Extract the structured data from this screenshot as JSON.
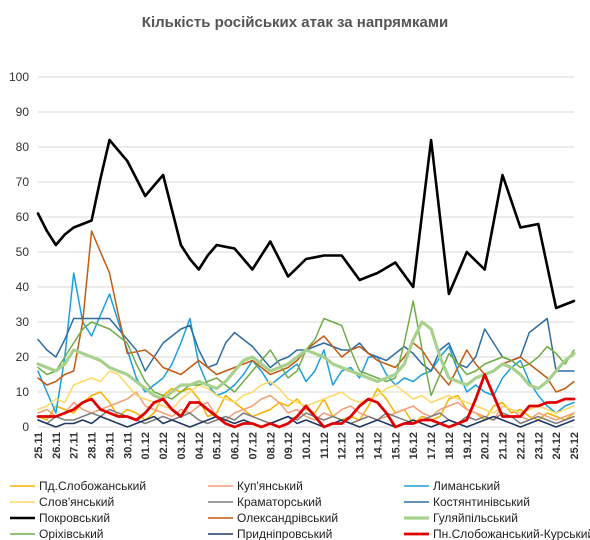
{
  "chart_data": {
    "type": "line",
    "title": "Кількість російських атак за напрямками",
    "xlabel": "",
    "ylabel": "",
    "ylim": [
      0,
      100
    ],
    "yticks": [
      0,
      10,
      20,
      30,
      40,
      50,
      60,
      70,
      80,
      90,
      100
    ],
    "grid": "horizontal",
    "legend_position": "bottom",
    "categories": [
      "25.11",
      "26.11",
      "27.11",
      "28.11",
      "29.11",
      "30.11",
      "01.12",
      "02.12",
      "03.12",
      "04.12",
      "05.12",
      "06.12",
      "07.12",
      "08.12",
      "09.12",
      "10.12",
      "11.12",
      "12.12",
      "13.12",
      "14.12",
      "15.12",
      "16.12",
      "17.12",
      "18.12",
      "19.12",
      "20.12",
      "21.12",
      "22.12",
      "23.12",
      "24.12",
      "25.12"
    ],
    "x": [
      0,
      0.5,
      1,
      1.5,
      2,
      2.5,
      3,
      3.5,
      4,
      4.5,
      5,
      5.5,
      6,
      6.5,
      7,
      7.5,
      8,
      8.5,
      9,
      9.5,
      10,
      10.5,
      11,
      11.5,
      12,
      12.5,
      13,
      13.5,
      14,
      14.5,
      15,
      15.5,
      16,
      16.5,
      17,
      17.5,
      18,
      18.5,
      19,
      19.5,
      20,
      20.5,
      21,
      21.5,
      22,
      22.5,
      23,
      23.5,
      24,
      24.5,
      25,
      25.5,
      26,
      26.5,
      27,
      27.5,
      28,
      28.5,
      29,
      29.5,
      30
    ],
    "series": [
      {
        "name": "Пд.Слобожанський",
        "color": "#f5b400",
        "width": 1.5,
        "values": [
          3,
          2,
          6,
          5,
          4,
          7,
          9,
          10,
          7,
          3,
          5,
          4,
          2,
          4,
          9,
          11,
          10,
          11,
          8,
          3,
          4,
          9,
          7,
          5,
          3,
          4,
          5,
          7,
          6,
          8,
          5,
          4,
          8,
          3,
          2,
          3,
          2,
          6,
          11,
          8,
          4,
          5,
          1,
          3,
          2,
          3,
          8,
          9,
          5,
          4,
          2,
          6,
          7,
          4,
          5,
          3,
          2,
          4,
          3,
          2,
          4
        ]
      },
      {
        "name": "Куп'янський",
        "color": "#f4a07a",
        "width": 1.5,
        "values": [
          4,
          5,
          3,
          4,
          7,
          5,
          4,
          5,
          6,
          7,
          8,
          10,
          6,
          5,
          4,
          3,
          5,
          4,
          6,
          7,
          3,
          2,
          4,
          5,
          6,
          8,
          9,
          7,
          4,
          5,
          3,
          2,
          4,
          3,
          5,
          6,
          4,
          3,
          2,
          3,
          4,
          5,
          6,
          4,
          3,
          5,
          6,
          7,
          5,
          4,
          3,
          2,
          6,
          5,
          3,
          2,
          4,
          3,
          2,
          3,
          4
        ]
      },
      {
        "name": "Лиманський",
        "color": "#1aa0e0",
        "width": 1.5,
        "values": [
          16,
          10,
          4,
          20,
          44,
          30,
          26,
          32,
          38,
          30,
          22,
          14,
          10,
          12,
          14,
          18,
          24,
          31,
          18,
          12,
          9,
          10,
          12,
          15,
          19,
          16,
          12,
          14,
          16,
          18,
          13,
          16,
          22,
          12,
          16,
          17,
          14,
          20,
          20,
          15,
          12,
          14,
          13,
          15,
          16,
          20,
          23,
          16,
          10,
          12,
          10,
          9,
          14,
          17,
          19,
          13,
          9,
          6,
          4,
          6,
          7
        ]
      },
      {
        "name": "Слов'янський",
        "color": "#ffd966",
        "width": 1.5,
        "values": [
          5,
          6,
          8,
          7,
          12,
          13,
          14,
          13,
          16,
          15,
          12,
          9,
          8,
          7,
          6,
          5,
          8,
          10,
          12,
          11,
          9,
          8,
          7,
          9,
          10,
          12,
          13,
          11,
          8,
          7,
          6,
          7,
          8,
          9,
          10,
          8,
          7,
          8,
          9,
          11,
          12,
          10,
          8,
          9,
          7,
          8,
          9,
          8,
          7,
          6,
          5,
          4,
          6,
          5,
          4,
          5,
          6,
          5,
          4,
          5,
          6
        ]
      },
      {
        "name": "Краматорський",
        "color": "#7f7f7f",
        "width": 1.5,
        "values": [
          2,
          1,
          3,
          2,
          2,
          3,
          4,
          3,
          5,
          4,
          3,
          2,
          1,
          2,
          3,
          2,
          3,
          4,
          2,
          1,
          2,
          3,
          2,
          4,
          3,
          2,
          1,
          2,
          3,
          2,
          4,
          3,
          2,
          3,
          2,
          1,
          2,
          3,
          2,
          4,
          3,
          2,
          1,
          2,
          3,
          4,
          2,
          1,
          3,
          2,
          3,
          2,
          4,
          3,
          1,
          2,
          3,
          2,
          1,
          2,
          3
        ]
      },
      {
        "name": "Костянтинівський",
        "color": "#2e6da4",
        "width": 1.5,
        "values": [
          25,
          22,
          20,
          25,
          31,
          31,
          31,
          31,
          31,
          28,
          25,
          22,
          16,
          20,
          24,
          26,
          28,
          29,
          22,
          17,
          18,
          24,
          27,
          25,
          23,
          20,
          17,
          19,
          20,
          22,
          22,
          23,
          24,
          23,
          22,
          22,
          24,
          21,
          20,
          19,
          21,
          23,
          21,
          18,
          16,
          22,
          24,
          18,
          17,
          20,
          28,
          24,
          20,
          19,
          20,
          27,
          29,
          31,
          16,
          16,
          16
        ]
      },
      {
        "name": "Покровський",
        "color": "#000000",
        "width": 2.6,
        "values": [
          61,
          56,
          52,
          55,
          57,
          58,
          59,
          71,
          82,
          79,
          76,
          71,
          66,
          69,
          72,
          62,
          52,
          48,
          45,
          49,
          52,
          51.5,
          51,
          48,
          45,
          49,
          53,
          48,
          43,
          45.5,
          48,
          48.5,
          49,
          49,
          49,
          45.5,
          42,
          43,
          44,
          45.5,
          47,
          43.5,
          40,
          61,
          82,
          60,
          38,
          44,
          50,
          47.5,
          45,
          58.5,
          72,
          64.5,
          57,
          57.5,
          58,
          46,
          34,
          35,
          36
        ]
      },
      {
        "name": "Олександрівський",
        "color": "#c55a11",
        "width": 1.5,
        "values": [
          14,
          12,
          13,
          15,
          16,
          30,
          56,
          50,
          44,
          32,
          21,
          21.5,
          22,
          20,
          17,
          16,
          15,
          17,
          19,
          17,
          15,
          16,
          17,
          18,
          19,
          17,
          15,
          16,
          17,
          19,
          22,
          24,
          26,
          23,
          20,
          22,
          23,
          21,
          19,
          18,
          17,
          20,
          24,
          22,
          18,
          15,
          12,
          17,
          22,
          18,
          15,
          16,
          18,
          19,
          20,
          18,
          16,
          14,
          10,
          11,
          13
        ]
      },
      {
        "name": "Гуляйпільський",
        "color": "#a9d18e",
        "width": 3.2,
        "values": [
          18,
          17,
          16,
          18,
          22,
          21,
          20,
          19,
          17,
          16,
          15,
          13,
          11,
          9,
          8,
          10,
          12,
          12,
          13,
          12,
          11,
          13,
          16,
          19,
          20,
          18,
          16,
          17,
          18,
          20,
          22,
          21,
          20,
          18,
          17,
          16,
          15,
          14,
          13,
          14,
          15,
          18,
          25,
          30,
          28,
          20,
          14,
          13,
          12,
          14,
          15,
          16,
          18,
          17,
          15,
          12,
          11,
          13,
          16,
          19,
          21
        ]
      },
      {
        "name": "Оріхівський",
        "color": "#70ad47",
        "width": 1.5,
        "values": [
          17,
          15,
          16,
          20,
          24,
          28,
          30,
          29,
          28,
          26,
          24,
          18,
          13,
          10,
          9,
          8,
          10,
          12,
          12,
          13,
          14,
          12,
          10,
          13,
          16,
          19,
          22,
          18,
          14,
          16,
          22,
          25,
          31,
          30,
          29,
          22,
          16,
          15,
          14,
          13,
          14,
          24,
          36,
          22,
          9,
          15,
          21,
          18,
          15,
          16,
          18,
          19,
          20,
          19,
          17,
          18,
          20,
          23,
          21,
          18,
          22
        ]
      },
      {
        "name": "Придніпровський",
        "color": "#1f3864",
        "width": 1.5,
        "values": [
          2,
          1,
          0,
          1,
          1,
          2,
          1,
          3,
          2,
          1,
          0,
          1,
          2,
          3,
          1,
          2,
          1,
          0,
          1,
          2,
          3,
          2,
          1,
          2,
          1,
          0,
          1,
          2,
          3,
          1,
          2,
          1,
          0,
          1,
          2,
          1,
          0,
          1,
          2,
          1,
          0,
          1,
          2,
          1,
          0,
          1,
          2,
          1,
          0,
          1,
          2,
          3,
          2,
          1,
          0,
          1,
          2,
          1,
          0,
          1,
          2
        ]
      },
      {
        "name": "Пн.Слобожанський-Курський",
        "color": "#e00000",
        "width": 2.8,
        "values": [
          3,
          3,
          3,
          4,
          5,
          7,
          8,
          5,
          4,
          3,
          3,
          2,
          4,
          7,
          8,
          5,
          3,
          7,
          7,
          5,
          3,
          1,
          0,
          1,
          1,
          0,
          1,
          0,
          1,
          3,
          6,
          3,
          0,
          1,
          1,
          3,
          6,
          8,
          7,
          4,
          0,
          1,
          1,
          2,
          2,
          1,
          0,
          1,
          2,
          8,
          15,
          9,
          3,
          3,
          3,
          6,
          6,
          7,
          7,
          8,
          8
        ]
      }
    ]
  }
}
